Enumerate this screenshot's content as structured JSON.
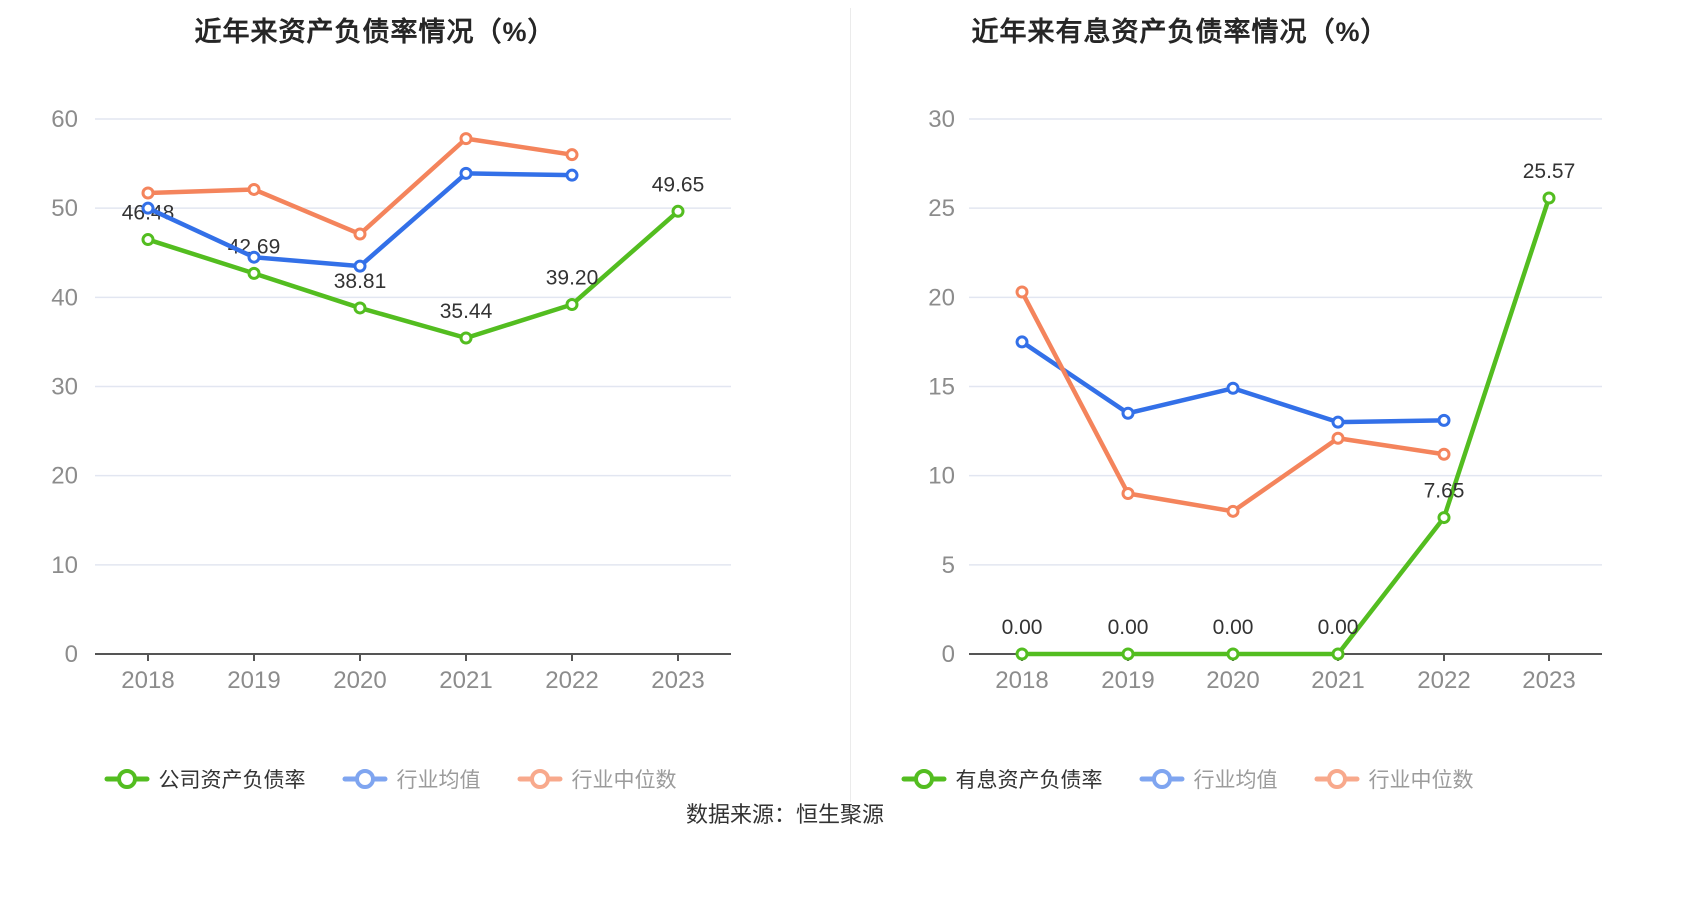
{
  "page": {
    "background": "#ffffff",
    "source_caption": "数据来源：恒生聚源"
  },
  "chart_data": [
    {
      "type": "line",
      "title": "近年来资产负债率情况（%）",
      "categories": [
        "2018",
        "2019",
        "2020",
        "2021",
        "2022",
        "2023"
      ],
      "ylim": [
        0,
        60
      ],
      "ytick_interval": 10,
      "yticks": [
        "0",
        "10",
        "20",
        "30",
        "40",
        "50",
        "60"
      ],
      "grid": true,
      "legend_position": "bottom",
      "grid_color": "#E2E6F1",
      "axis_color": "#555555",
      "tick_label_color": "#8C8C8C",
      "data_label_color": "#333333",
      "series": [
        {
          "name": "公司资产负债率",
          "color": "#53BD20",
          "legend_color": "#53BD20",
          "text_color": "#333333",
          "values": [
            46.48,
            42.69,
            38.81,
            35.44,
            39.2,
            49.65
          ],
          "labels": [
            "46.48",
            "42.69",
            "38.81",
            "35.44",
            "39.20",
            "49.65"
          ]
        },
        {
          "name": "行业均值",
          "color": "#3370E8",
          "legend_color": "#7FA5F0",
          "text_color": "#9B9B9B",
          "values": [
            50.0,
            44.5,
            43.5,
            53.9,
            53.7,
            null
          ]
        },
        {
          "name": "行业中位数",
          "color": "#F4845C",
          "legend_color": "#F8A98C",
          "text_color": "#9B9B9B",
          "values": [
            51.7,
            52.1,
            47.1,
            57.8,
            56.0,
            null
          ]
        }
      ]
    },
    {
      "type": "line",
      "title": "近年来有息资产负债率情况（%）",
      "categories": [
        "2018",
        "2019",
        "2020",
        "2021",
        "2022",
        "2023"
      ],
      "ylim": [
        0,
        30
      ],
      "ytick_interval": 5,
      "yticks": [
        "0",
        "5",
        "10",
        "15",
        "20",
        "25",
        "30"
      ],
      "grid": true,
      "legend_position": "bottom",
      "grid_color": "#E2E6F1",
      "axis_color": "#555555",
      "tick_label_color": "#8C8C8C",
      "data_label_color": "#333333",
      "series": [
        {
          "name": "有息资产负债率",
          "color": "#53BD20",
          "legend_color": "#53BD20",
          "text_color": "#333333",
          "values": [
            0.0,
            0.0,
            0.0,
            0.0,
            7.65,
            25.57
          ],
          "labels": [
            "0.00",
            "0.00",
            "0.00",
            "0.00",
            "7.65",
            "25.57"
          ]
        },
        {
          "name": "行业均值",
          "color": "#3370E8",
          "legend_color": "#7FA5F0",
          "text_color": "#9B9B9B",
          "values": [
            17.5,
            13.5,
            14.9,
            13.0,
            13.1,
            null
          ]
        },
        {
          "name": "行业中位数",
          "color": "#F4845C",
          "legend_color": "#F8A98C",
          "text_color": "#9B9B9B",
          "values": [
            20.3,
            9.0,
            8.0,
            12.1,
            11.2,
            null
          ]
        }
      ]
    }
  ]
}
